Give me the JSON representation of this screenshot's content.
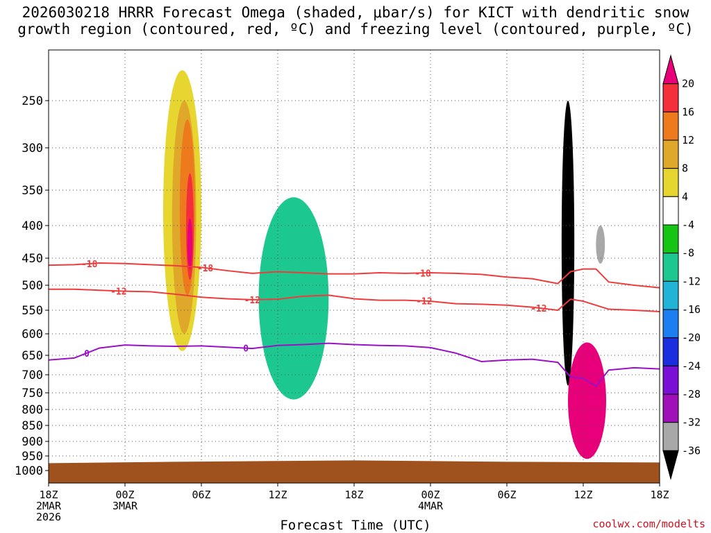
{
  "chart_data": {
    "type": "heatmap",
    "title_line1": "2026030218 HRRR Forecast Omega (shaded, μbar/s) for KICT with dendritic snow",
    "title_line2": "growth region (contoured, red, ºC) and freezing level (contoured, purple, ºC)",
    "xlabel": "Forecast Time (UTC)",
    "ylabel": "",
    "credit": "coolwx.com/modelts",
    "x_range_hours": [
      0,
      48
    ],
    "x_ticks": [
      {
        "hour": 0,
        "lines": [
          "18Z",
          "2MAR",
          "2026"
        ]
      },
      {
        "hour": 6,
        "lines": [
          "00Z",
          "3MAR"
        ]
      },
      {
        "hour": 12,
        "lines": [
          "06Z"
        ]
      },
      {
        "hour": 18,
        "lines": [
          "12Z"
        ]
      },
      {
        "hour": 24,
        "lines": [
          "18Z"
        ]
      },
      {
        "hour": 30,
        "lines": [
          "00Z",
          "4MAR"
        ]
      },
      {
        "hour": 36,
        "lines": [
          "06Z"
        ]
      },
      {
        "hour": 42,
        "lines": [
          "12Z"
        ]
      },
      {
        "hour": 48,
        "lines": [
          "18Z"
        ]
      }
    ],
    "y_range_hpa": [
      1000,
      200
    ],
    "y_ticks": [
      "250",
      "300",
      "350",
      "400",
      "450",
      "500",
      "550",
      "600",
      "650",
      "700",
      "750",
      "800",
      "850",
      "900",
      "950",
      "1000"
    ],
    "surface_pressure_hpa": 970,
    "colorbar": {
      "labels": [
        "20",
        "16",
        "12",
        "8",
        "4",
        "-4",
        "-8",
        "-12",
        "-16",
        "-20",
        "-24",
        "-28",
        "-32",
        "-36"
      ],
      "colors": [
        "#e8007a",
        "#f42e3a",
        "#ee7a1e",
        "#e0a82a",
        "#e8d630",
        "#ffffff",
        "#16c416",
        "#1cc890",
        "#22b4d6",
        "#1c7ef0",
        "#1a2ee0",
        "#7a10d6",
        "#a010b8",
        "#a8a8a8",
        "#000000"
      ]
    },
    "shaded_regions": [
      {
        "t": [
          9.0,
          12.0
        ],
        "p": [
          220,
          640
        ],
        "value": 6,
        "level": "4 to 8"
      },
      {
        "t": [
          9.7,
          11.6
        ],
        "p": [
          250,
          600
        ],
        "value": 10,
        "level": "8 to 12"
      },
      {
        "t": [
          10.3,
          11.5
        ],
        "p": [
          270,
          520
        ],
        "value": 14,
        "level": "12 to 16"
      },
      {
        "t": [
          10.8,
          11.4
        ],
        "p": [
          330,
          490
        ],
        "value": 18,
        "level": "16 to 20"
      },
      {
        "t": [
          10.9,
          11.3
        ],
        "p": [
          390,
          470
        ],
        "value": 21,
        "level": ">20"
      },
      {
        "t": [
          16.5,
          22.0
        ],
        "p": [
          360,
          770
        ],
        "value": -10,
        "level": "-8 to -12"
      },
      {
        "t": [
          40.3,
          41.3
        ],
        "p": [
          250,
          730
        ],
        "value": -40,
        "level": "< -36"
      },
      {
        "t": [
          40.8,
          43.8
        ],
        "p": [
          620,
          960
        ],
        "value": 24,
        "level": ">20"
      },
      {
        "t": [
          43.0,
          43.7
        ],
        "p": [
          400,
          460
        ],
        "value": -33,
        "level": "-32 to -36"
      }
    ],
    "contours": [
      {
        "name": "dendritic -18 °C",
        "color": "#ee3c3c",
        "label": "-18",
        "hours": [
          0,
          2,
          4,
          6,
          8,
          10,
          12,
          14,
          16,
          18,
          20,
          22,
          24,
          26,
          28,
          30,
          32,
          34,
          36,
          38,
          40,
          41,
          42,
          43,
          44,
          46,
          48
        ],
        "pressure_hpa": [
          463,
          462,
          459,
          460,
          462,
          464,
          467,
          473,
          478,
          475,
          477,
          479,
          479,
          477,
          478,
          477,
          478,
          480,
          485,
          488,
          497,
          475,
          470,
          470,
          494,
          500,
          505
        ]
      },
      {
        "name": "dendritic -12 °C",
        "color": "#ee3c3c",
        "label": "-12",
        "hours": [
          0,
          2,
          4,
          6,
          8,
          10,
          12,
          14,
          16,
          18,
          20,
          22,
          24,
          26,
          28,
          30,
          32,
          34,
          36,
          38,
          40,
          41,
          42,
          43,
          44,
          46,
          48
        ],
        "pressure_hpa": [
          508,
          508,
          510,
          512,
          513,
          518,
          524,
          527,
          529,
          528,
          522,
          520,
          527,
          530,
          530,
          532,
          537,
          538,
          540,
          544,
          550,
          528,
          532,
          540,
          548,
          550,
          553
        ]
      },
      {
        "name": "freezing level 0 °C",
        "color": "#9a10c8",
        "label": "0",
        "hours": [
          0,
          2,
          4,
          6,
          8,
          10,
          12,
          14,
          16,
          18,
          20,
          22,
          24,
          26,
          28,
          30,
          32,
          34,
          36,
          38,
          40,
          41,
          42,
          43,
          44,
          46,
          48
        ],
        "pressure_hpa": [
          662,
          657,
          633,
          626,
          628,
          629,
          628,
          631,
          634,
          627,
          625,
          622,
          625,
          627,
          628,
          632,
          645,
          666,
          662,
          660,
          668,
          706,
          710,
          732,
          688,
          682,
          685
        ]
      }
    ]
  }
}
